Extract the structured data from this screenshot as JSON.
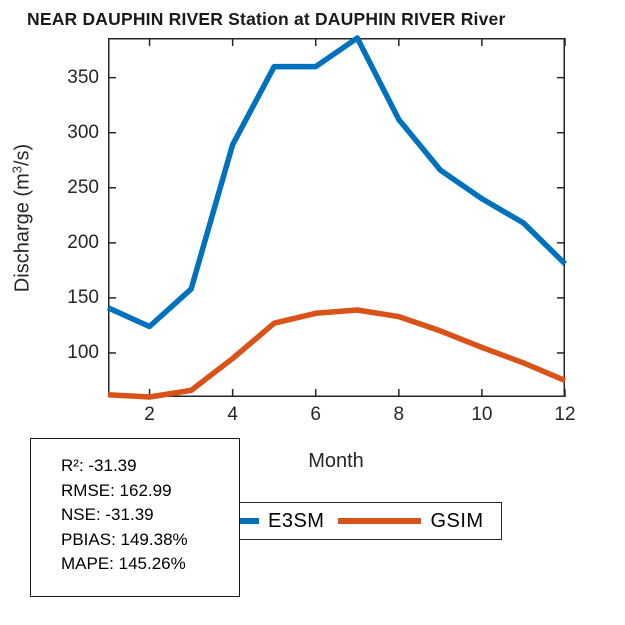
{
  "chart_data": {
    "type": "line",
    "title": "NEAR DAUPHIN RIVER  Station at  DAUPHIN RIVER  River",
    "xlabel": "Month",
    "ylabel": "Discharge (m³/s)",
    "ylabel_parts": {
      "pre": "Discharge (m",
      "sup": "3",
      "post": "/s)"
    },
    "x": [
      1,
      2,
      3,
      4,
      5,
      6,
      7,
      8,
      9,
      10,
      11,
      12
    ],
    "xlim": [
      1,
      12
    ],
    "ylim": [
      60,
      386
    ],
    "xticks": [
      2,
      4,
      6,
      8,
      10,
      12
    ],
    "yticks": [
      100,
      150,
      200,
      250,
      300,
      350
    ],
    "grid": false,
    "legend_position": "bottom",
    "series": [
      {
        "name": "E3SM",
        "color": "#0072BD",
        "values": [
          141,
          124,
          158,
          289,
          360,
          360,
          386,
          312,
          266,
          240,
          218,
          181
        ]
      },
      {
        "name": "GSIM",
        "color": "#D95319",
        "values": [
          62,
          60,
          66,
          95,
          127,
          136,
          139,
          133,
          120,
          105,
          91,
          75
        ]
      }
    ]
  },
  "stats_box": {
    "lines": [
      "R²: -31.39",
      "RMSE: 162.99",
      "NSE: -31.39",
      "PBIAS: 149.38%",
      "MAPE: 145.26%"
    ]
  }
}
